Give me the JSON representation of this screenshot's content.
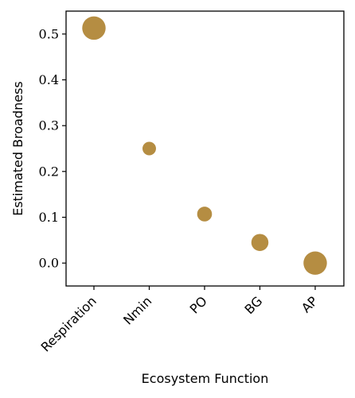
{
  "chart_data": {
    "type": "scatter",
    "title": "",
    "xlabel": "Ecosystem Function",
    "ylabel": "Estimated Broadness",
    "categories": [
      "Respiration",
      "Nmin",
      "PO",
      "BG",
      "AP"
    ],
    "values": [
      0.513,
      0.25,
      0.107,
      0.045,
      0.0
    ],
    "sizes": [
      3,
      1,
      1.2,
      1.6,
      3
    ],
    "ylim": [
      -0.05,
      0.55
    ],
    "yticks": [
      0.0,
      0.1,
      0.2,
      0.3,
      0.4,
      0.5
    ],
    "ytick_labels": [
      "0.0",
      "0.1",
      "0.2",
      "0.3",
      "0.4",
      "0.5"
    ],
    "grid": false,
    "colors": {
      "marker": "#b58d42",
      "axis": "#000000"
    }
  }
}
